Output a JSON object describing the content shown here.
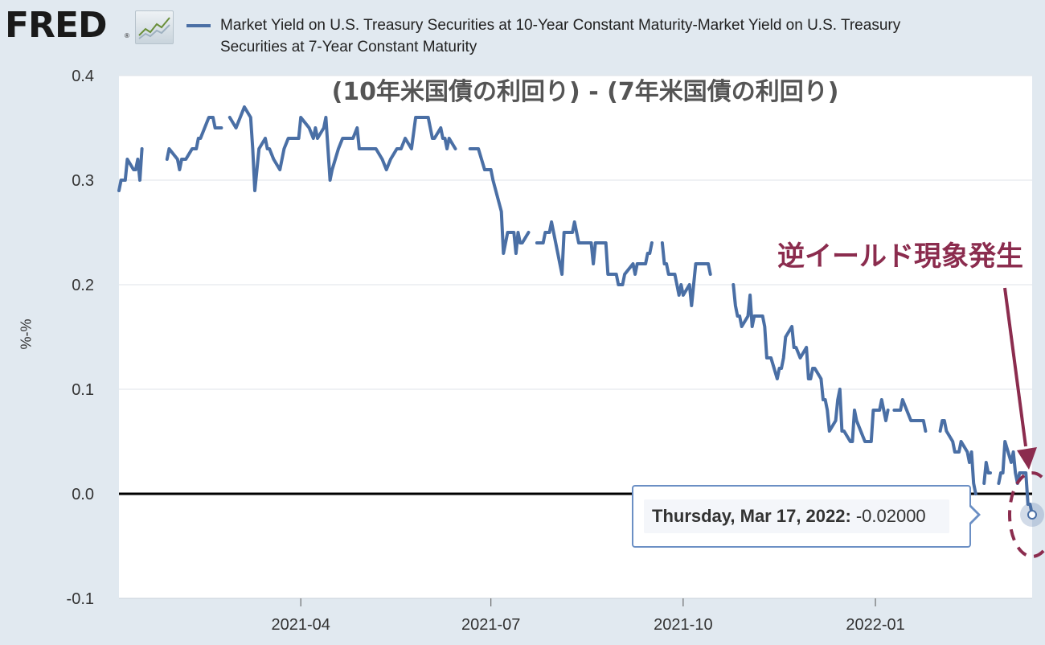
{
  "header": {
    "logo_text": "FRED",
    "logo_mark": "®",
    "logo_icon": "line-chart-icon",
    "legend_text": "Market Yield on U.S. Treasury Securities at 10-Year Constant Maturity-Market Yield on U.S. Treasury Securities at 7-Year Constant Maturity",
    "legend_color": "#4a6fa5"
  },
  "tooltip": {
    "date": "Thursday, Mar 17, 2022:",
    "value": "-0.02000"
  },
  "annotation": {
    "label": "逆イールド現象発生",
    "color": "#8b2c4e"
  },
  "chart_data": {
    "type": "line",
    "title": "(10年米国債の利回り) - (7年米国債の利回り)",
    "ylabel": "%-%",
    "xlabel": "",
    "ylim": [
      -0.1,
      0.4
    ],
    "yticks": [
      -0.1,
      0.0,
      0.1,
      0.2,
      0.3,
      0.4
    ],
    "ytick_labels": [
      "-0.1",
      "0.0",
      "0.1",
      "0.2",
      "0.3",
      "0.4"
    ],
    "xlim": [
      "2021-01-04",
      "2022-03-17"
    ],
    "xticks": [
      "2021-04-01",
      "2021-07-01",
      "2021-10-01",
      "2022-01-01"
    ],
    "xtick_labels": [
      "2021-04",
      "2021-07",
      "2021-10",
      "2022-01"
    ],
    "grid": "horizontal",
    "zero_line": true,
    "line_color": "#4a6fa5",
    "series": [
      {
        "values": [
          [
            "2021-01-04",
            0.29
          ],
          [
            "2021-01-05",
            0.3
          ],
          [
            "2021-01-07",
            0.3
          ],
          [
            "2021-01-08",
            0.32
          ],
          [
            "2021-01-11",
            0.31
          ],
          [
            "2021-01-12",
            0.31
          ],
          [
            "2021-01-13",
            0.32
          ],
          [
            "2021-01-14",
            0.3
          ],
          [
            "2021-01-15",
            0.33
          ],
          null,
          [
            "2021-01-27",
            0.32
          ],
          [
            "2021-01-28",
            0.33
          ],
          [
            "2021-02-01",
            0.32
          ],
          [
            "2021-02-02",
            0.31
          ],
          [
            "2021-02-03",
            0.32
          ],
          [
            "2021-02-05",
            0.32
          ],
          [
            "2021-02-08",
            0.33
          ],
          [
            "2021-02-10",
            0.33
          ],
          [
            "2021-02-11",
            0.34
          ],
          [
            "2021-02-12",
            0.34
          ],
          [
            "2021-02-16",
            0.36
          ],
          [
            "2021-02-18",
            0.36
          ],
          [
            "2021-02-19",
            0.35
          ],
          [
            "2021-02-22",
            0.35
          ],
          null,
          [
            "2021-02-26",
            0.36
          ],
          [
            "2021-03-01",
            0.35
          ],
          [
            "2021-03-03",
            0.36
          ],
          [
            "2021-03-05",
            0.37
          ],
          [
            "2021-03-08",
            0.36
          ],
          [
            "2021-03-09",
            0.33
          ],
          [
            "2021-03-10",
            0.29
          ],
          [
            "2021-03-12",
            0.33
          ],
          [
            "2021-03-15",
            0.34
          ],
          [
            "2021-03-16",
            0.33
          ],
          [
            "2021-03-17",
            0.33
          ],
          [
            "2021-03-19",
            0.32
          ],
          [
            "2021-03-22",
            0.31
          ],
          [
            "2021-03-24",
            0.33
          ],
          [
            "2021-03-26",
            0.34
          ],
          [
            "2021-03-29",
            0.34
          ],
          [
            "2021-03-31",
            0.34
          ],
          [
            "2021-04-01",
            0.36
          ],
          [
            "2021-04-05",
            0.35
          ],
          [
            "2021-04-07",
            0.34
          ],
          [
            "2021-04-08",
            0.35
          ],
          [
            "2021-04-09",
            0.34
          ],
          [
            "2021-04-12",
            0.35
          ],
          [
            "2021-04-13",
            0.36
          ],
          [
            "2021-04-14",
            0.33
          ],
          [
            "2021-04-15",
            0.3
          ],
          [
            "2021-04-16",
            0.31
          ],
          [
            "2021-04-19",
            0.33
          ],
          [
            "2021-04-21",
            0.34
          ],
          [
            "2021-04-23",
            0.34
          ],
          [
            "2021-04-26",
            0.34
          ],
          [
            "2021-04-28",
            0.35
          ],
          [
            "2021-04-29",
            0.33
          ],
          [
            "2021-04-30",
            0.33
          ],
          [
            "2021-05-03",
            0.33
          ],
          [
            "2021-05-05",
            0.33
          ],
          [
            "2021-05-07",
            0.33
          ],
          [
            "2021-05-10",
            0.32
          ],
          [
            "2021-05-12",
            0.31
          ],
          [
            "2021-05-14",
            0.32
          ],
          [
            "2021-05-17",
            0.33
          ],
          [
            "2021-05-19",
            0.33
          ],
          [
            "2021-05-21",
            0.34
          ],
          [
            "2021-05-24",
            0.33
          ],
          [
            "2021-05-26",
            0.36
          ],
          [
            "2021-05-28",
            0.36
          ],
          [
            "2021-06-01",
            0.36
          ],
          [
            "2021-06-02",
            0.35
          ],
          [
            "2021-06-03",
            0.34
          ],
          [
            "2021-06-04",
            0.34
          ],
          [
            "2021-06-07",
            0.35
          ],
          [
            "2021-06-08",
            0.34
          ],
          [
            "2021-06-09",
            0.34
          ],
          [
            "2021-06-10",
            0.33
          ],
          [
            "2021-06-11",
            0.34
          ],
          [
            "2021-06-14",
            0.33
          ],
          null,
          [
            "2021-06-21",
            0.33
          ],
          [
            "2021-06-22",
            0.33
          ],
          [
            "2021-06-25",
            0.33
          ],
          [
            "2021-06-28",
            0.31
          ],
          [
            "2021-06-30",
            0.31
          ],
          [
            "2021-07-01",
            0.31
          ],
          [
            "2021-07-02",
            0.3
          ],
          [
            "2021-07-06",
            0.27
          ],
          [
            "2021-07-07",
            0.23
          ],
          [
            "2021-07-08",
            0.24
          ],
          [
            "2021-07-09",
            0.25
          ],
          [
            "2021-07-12",
            0.25
          ],
          [
            "2021-07-13",
            0.23
          ],
          [
            "2021-07-14",
            0.25
          ],
          [
            "2021-07-15",
            0.24
          ],
          [
            "2021-07-16",
            0.24
          ],
          [
            "2021-07-19",
            0.25
          ],
          null,
          [
            "2021-07-23",
            0.24
          ],
          [
            "2021-07-26",
            0.24
          ],
          [
            "2021-07-27",
            0.25
          ],
          [
            "2021-07-28",
            0.25
          ],
          [
            "2021-07-29",
            0.25
          ],
          [
            "2021-07-30",
            0.26
          ],
          [
            "2021-08-02",
            0.23
          ],
          [
            "2021-08-03",
            0.22
          ],
          [
            "2021-08-04",
            0.21
          ],
          [
            "2021-08-05",
            0.25
          ],
          [
            "2021-08-06",
            0.25
          ],
          [
            "2021-08-09",
            0.25
          ],
          [
            "2021-08-10",
            0.26
          ],
          [
            "2021-08-11",
            0.25
          ],
          [
            "2021-08-12",
            0.24
          ],
          [
            "2021-08-13",
            0.24
          ],
          [
            "2021-08-16",
            0.24
          ],
          [
            "2021-08-17",
            0.24
          ],
          [
            "2021-08-18",
            0.24
          ],
          [
            "2021-08-19",
            0.22
          ],
          [
            "2021-08-20",
            0.24
          ],
          [
            "2021-08-23",
            0.24
          ],
          [
            "2021-08-24",
            0.24
          ],
          [
            "2021-08-25",
            0.24
          ],
          [
            "2021-08-26",
            0.21
          ],
          [
            "2021-08-27",
            0.21
          ],
          [
            "2021-08-30",
            0.21
          ],
          [
            "2021-08-31",
            0.2
          ],
          [
            "2021-09-01",
            0.2
          ],
          [
            "2021-09-02",
            0.2
          ],
          [
            "2021-09-03",
            0.21
          ],
          [
            "2021-09-07",
            0.22
          ],
          [
            "2021-09-08",
            0.21
          ],
          [
            "2021-09-09",
            0.22
          ],
          [
            "2021-09-10",
            0.22
          ],
          [
            "2021-09-13",
            0.22
          ],
          [
            "2021-09-14",
            0.23
          ],
          [
            "2021-09-15",
            0.23
          ],
          [
            "2021-09-16",
            0.24
          ],
          null,
          [
            "2021-09-21",
            0.24
          ],
          [
            "2021-09-22",
            0.22
          ],
          [
            "2021-09-23",
            0.22
          ],
          [
            "2021-09-24",
            0.21
          ],
          [
            "2021-09-27",
            0.21
          ],
          [
            "2021-09-28",
            0.2
          ],
          [
            "2021-09-29",
            0.19
          ],
          [
            "2021-09-30",
            0.2
          ],
          [
            "2021-10-01",
            0.19
          ],
          [
            "2021-10-04",
            0.2
          ],
          [
            "2021-10-05",
            0.18
          ],
          [
            "2021-10-06",
            0.2
          ],
          [
            "2021-10-07",
            0.22
          ],
          [
            "2021-10-08",
            0.22
          ],
          [
            "2021-10-12",
            0.22
          ],
          [
            "2021-10-13",
            0.22
          ],
          [
            "2021-10-14",
            0.21
          ],
          null,
          [
            "2021-10-25",
            0.2
          ],
          [
            "2021-10-26",
            0.18
          ],
          [
            "2021-10-27",
            0.17
          ],
          [
            "2021-10-28",
            0.17
          ],
          [
            "2021-10-29",
            0.16
          ],
          [
            "2021-11-01",
            0.17
          ],
          [
            "2021-11-02",
            0.19
          ],
          [
            "2021-11-03",
            0.16
          ],
          [
            "2021-11-04",
            0.17
          ],
          [
            "2021-11-05",
            0.17
          ],
          [
            "2021-11-08",
            0.17
          ],
          [
            "2021-11-09",
            0.16
          ],
          [
            "2021-11-10",
            0.13
          ],
          [
            "2021-11-12",
            0.13
          ],
          [
            "2021-11-15",
            0.11
          ],
          [
            "2021-11-16",
            0.12
          ],
          [
            "2021-11-17",
            0.12
          ],
          [
            "2021-11-18",
            0.13
          ],
          [
            "2021-11-19",
            0.15
          ],
          [
            "2021-11-22",
            0.16
          ],
          [
            "2021-11-23",
            0.14
          ],
          [
            "2021-11-24",
            0.14
          ],
          [
            "2021-11-26",
            0.13
          ],
          [
            "2021-11-29",
            0.14
          ],
          [
            "2021-11-30",
            0.11
          ],
          [
            "2021-12-01",
            0.11
          ],
          [
            "2021-12-02",
            0.12
          ],
          [
            "2021-12-03",
            0.12
          ],
          [
            "2021-12-06",
            0.11
          ],
          [
            "2021-12-07",
            0.09
          ],
          [
            "2021-12-08",
            0.09
          ],
          [
            "2021-12-09",
            0.08
          ],
          [
            "2021-12-10",
            0.06
          ],
          [
            "2021-12-13",
            0.07
          ],
          [
            "2021-12-14",
            0.09
          ],
          [
            "2021-12-15",
            0.1
          ],
          [
            "2021-12-16",
            0.06
          ],
          [
            "2021-12-17",
            0.06
          ],
          [
            "2021-12-20",
            0.05
          ],
          [
            "2021-12-21",
            0.05
          ],
          [
            "2021-12-22",
            0.08
          ],
          [
            "2021-12-23",
            0.07
          ],
          [
            "2021-12-27",
            0.05
          ],
          [
            "2021-12-28",
            0.05
          ],
          [
            "2021-12-30",
            0.05
          ],
          [
            "2021-12-31",
            0.08
          ],
          [
            "2022-01-03",
            0.08
          ],
          [
            "2022-01-04",
            0.09
          ],
          [
            "2022-01-05",
            0.08
          ],
          [
            "2022-01-06",
            0.07
          ],
          [
            "2022-01-07",
            0.08
          ],
          null,
          [
            "2022-01-10",
            0.08
          ],
          [
            "2022-01-11",
            0.08
          ],
          [
            "2022-01-12",
            0.08
          ],
          [
            "2022-01-13",
            0.08
          ],
          [
            "2022-01-14",
            0.09
          ],
          [
            "2022-01-18",
            0.07
          ],
          [
            "2022-01-19",
            0.07
          ],
          [
            "2022-01-20",
            0.07
          ],
          [
            "2022-01-21",
            0.07
          ],
          [
            "2022-01-24",
            0.07
          ],
          [
            "2022-01-25",
            0.06
          ],
          null,
          [
            "2022-02-01",
            0.06
          ],
          [
            "2022-02-02",
            0.07
          ],
          [
            "2022-02-03",
            0.07
          ],
          [
            "2022-02-04",
            0.06
          ],
          [
            "2022-02-07",
            0.05
          ],
          [
            "2022-02-08",
            0.04
          ],
          [
            "2022-02-09",
            0.04
          ],
          [
            "2022-02-10",
            0.04
          ],
          [
            "2022-02-11",
            0.05
          ],
          [
            "2022-02-14",
            0.04
          ],
          [
            "2022-02-15",
            0.03
          ],
          [
            "2022-02-16",
            0.04
          ],
          [
            "2022-02-17",
            0.01
          ],
          [
            "2022-02-18",
            0.0
          ],
          null,
          [
            "2022-02-22",
            0.01
          ],
          [
            "2022-02-23",
            0.03
          ],
          [
            "2022-02-24",
            0.02
          ],
          [
            "2022-02-25",
            0.02
          ],
          null,
          [
            "2022-03-01",
            0.01
          ],
          [
            "2022-03-02",
            0.02
          ],
          [
            "2022-03-03",
            0.02
          ],
          [
            "2022-03-04",
            0.05
          ],
          [
            "2022-03-07",
            0.03
          ],
          [
            "2022-03-08",
            0.04
          ],
          [
            "2022-03-09",
            0.02
          ],
          [
            "2022-03-10",
            0.01
          ],
          [
            "2022-03-11",
            0.02
          ],
          [
            "2022-03-14",
            0.02
          ],
          [
            "2022-03-15",
            -0.01
          ],
          [
            "2022-03-16",
            -0.01
          ],
          [
            "2022-03-17",
            -0.02
          ]
        ]
      }
    ]
  }
}
